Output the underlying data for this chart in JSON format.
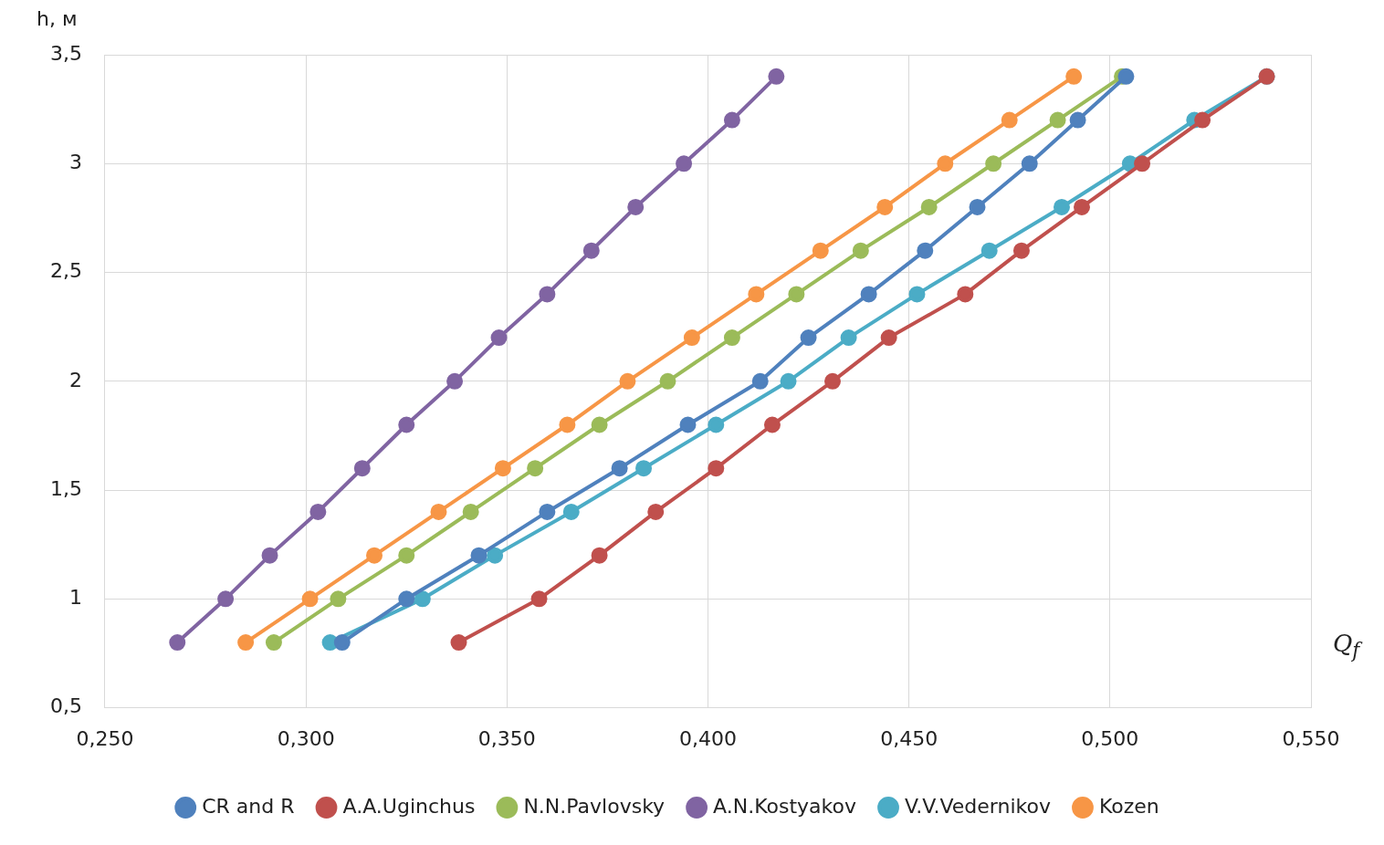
{
  "chart_data": {
    "type": "line",
    "xlabel": "Q$_{f}$",
    "ylabel": "h, м",
    "xlim": [
      0.25,
      0.55
    ],
    "xticks": [
      {
        "value": 0.25,
        "label": "0,250"
      },
      {
        "value": 0.3,
        "label": "0,300"
      },
      {
        "value": 0.35,
        "label": "0,350"
      },
      {
        "value": 0.4,
        "label": "0,400"
      },
      {
        "value": 0.45,
        "label": "0,450"
      },
      {
        "value": 0.5,
        "label": "0,500"
      },
      {
        "value": 0.55,
        "label": "0,550"
      }
    ],
    "ylim": [
      0.5,
      3.5
    ],
    "yticks": [
      {
        "value": 0.5,
        "label": "0,5"
      },
      1,
      {
        "value": 1.5,
        "label": "1,5"
      },
      2,
      {
        "value": 2.5,
        "label": "2,5"
      },
      3,
      {
        "value": 3.5,
        "label": "3,5"
      }
    ],
    "grid": true,
    "legend": "bottom",
    "marker": "circle",
    "line_style": "solid",
    "series": [
      {
        "name": "CR and R",
        "color": "#4f81bd",
        "x": [
          0.309,
          0.325,
          0.343,
          0.36,
          0.378,
          0.395,
          0.413,
          0.425,
          0.44,
          0.454,
          0.467,
          0.48,
          0.492,
          0.504
        ],
        "values": [
          0.8,
          1,
          1.2,
          1.4,
          1.6,
          1.8,
          2,
          2.2,
          2.4,
          2.6,
          2.8,
          3,
          3.2,
          3.4
        ]
      },
      {
        "name": "A.A.Uginchus",
        "color": "#c0504d",
        "x": [
          0.338,
          0.358,
          0.373,
          0.387,
          0.402,
          0.416,
          0.431,
          0.445,
          0.464,
          0.478,
          0.493,
          0.508,
          0.523,
          0.539
        ],
        "values": [
          0.8,
          1,
          1.2,
          1.4,
          1.6,
          1.8,
          2,
          2.2,
          2.4,
          2.6,
          2.8,
          3,
          3.2,
          3.4
        ]
      },
      {
        "name": "N.N.Pavlovsky",
        "color": "#9bbb59",
        "x": [
          0.292,
          0.308,
          0.325,
          0.341,
          0.357,
          0.373,
          0.39,
          0.406,
          0.422,
          0.438,
          0.455,
          0.471,
          0.487,
          0.503
        ],
        "values": [
          0.8,
          1,
          1.2,
          1.4,
          1.6,
          1.8,
          2,
          2.2,
          2.4,
          2.6,
          2.8,
          3,
          3.2,
          3.4
        ]
      },
      {
        "name": "A.N.Kostyakov",
        "color": "#8064a2",
        "x": [
          0.268,
          0.28,
          0.291,
          0.303,
          0.314,
          0.325,
          0.337,
          0.348,
          0.36,
          0.371,
          0.382,
          0.394,
          0.406,
          0.417
        ],
        "values": [
          0.8,
          1,
          1.2,
          1.4,
          1.6,
          1.8,
          2,
          2.2,
          2.4,
          2.6,
          2.8,
          3,
          3.2,
          3.4
        ]
      },
      {
        "name": "V.V.Vedernikov",
        "color": "#4bacc6",
        "x": [
          0.306,
          0.329,
          0.347,
          0.366,
          0.384,
          0.402,
          0.42,
          0.435,
          0.452,
          0.47,
          0.488,
          0.505,
          0.521,
          0.539
        ],
        "values": [
          0.8,
          1,
          1.2,
          1.4,
          1.6,
          1.8,
          2,
          2.2,
          2.4,
          2.6,
          2.8,
          3,
          3.2,
          3.4
        ]
      },
      {
        "name": "Kozen",
        "color": "#f79646",
        "x": [
          0.285,
          0.301,
          0.317,
          0.333,
          0.349,
          0.365,
          0.38,
          0.396,
          0.412,
          0.428,
          0.444,
          0.459,
          0.475,
          0.491
        ],
        "values": [
          0.8,
          1,
          1.2,
          1.4,
          1.6,
          1.8,
          2,
          2.2,
          2.4,
          2.6,
          2.8,
          3,
          3.2,
          3.4
        ]
      }
    ]
  }
}
